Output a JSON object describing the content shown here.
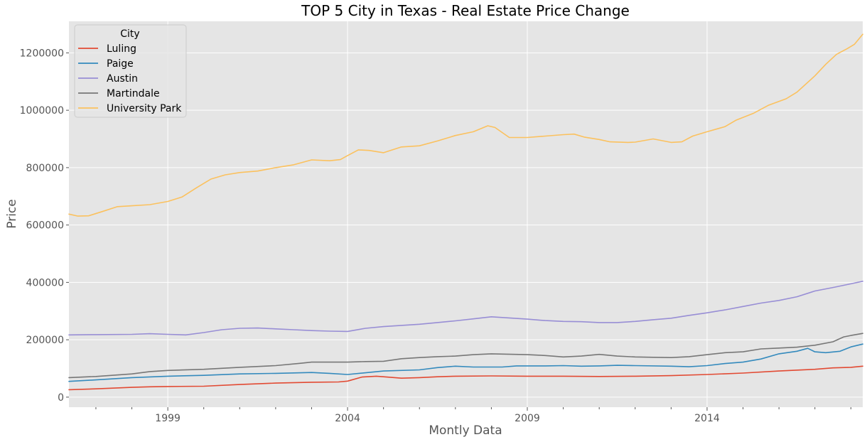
{
  "chart_data": {
    "type": "line",
    "title": "TOP 5 City in Texas - Real Estate Price Change",
    "xlabel": "Montly Data",
    "ylabel": "Price",
    "xlim": [
      1996.25,
      2018.33
    ],
    "ylim": [
      -35000,
      1310000
    ],
    "x_ticks": [
      1999,
      2004,
      2009,
      2014
    ],
    "x_tick_labels": [
      "1999",
      "2004",
      "2009",
      "2014"
    ],
    "y_ticks": [
      0,
      200000,
      400000,
      600000,
      800000,
      1000000,
      1200000
    ],
    "y_tick_labels": [
      "0",
      "200000",
      "400000",
      "600000",
      "800000",
      "1000000",
      "1200000"
    ],
    "grid": true,
    "legend": {
      "title": "City",
      "placement": "top-left"
    },
    "series": [
      {
        "name": "Luling",
        "color": "#E24A33",
        "points": [
          [
            1996.25,
            26000
          ],
          [
            1997,
            29000
          ],
          [
            1998,
            34000
          ],
          [
            1998.5,
            36000
          ],
          [
            1999,
            37000
          ],
          [
            2000,
            38000
          ],
          [
            2001,
            44000
          ],
          [
            2002,
            49000
          ],
          [
            2003,
            52000
          ],
          [
            2003.75,
            53000
          ],
          [
            2004,
            56000
          ],
          [
            2004.4,
            70000
          ],
          [
            2004.8,
            73000
          ],
          [
            2005,
            71000
          ],
          [
            2005.5,
            66000
          ],
          [
            2006,
            68000
          ],
          [
            2006.5,
            71000
          ],
          [
            2007,
            73000
          ],
          [
            2008,
            74000
          ],
          [
            2009,
            73000
          ],
          [
            2010,
            73000
          ],
          [
            2011,
            72000
          ],
          [
            2012,
            73000
          ],
          [
            2013,
            75000
          ],
          [
            2014,
            79000
          ],
          [
            2015,
            84000
          ],
          [
            2016,
            91000
          ],
          [
            2017,
            97000
          ],
          [
            2017.5,
            102000
          ],
          [
            2018,
            104000
          ],
          [
            2018.33,
            108000
          ]
        ]
      },
      {
        "name": "Paige",
        "color": "#348ABD",
        "points": [
          [
            1996.25,
            55000
          ],
          [
            1997,
            60000
          ],
          [
            1998,
            68000
          ],
          [
            1999,
            73000
          ],
          [
            2000,
            76000
          ],
          [
            2001,
            81000
          ],
          [
            2002,
            83000
          ],
          [
            2003,
            86000
          ],
          [
            2003.5,
            83000
          ],
          [
            2004,
            79000
          ],
          [
            2004.5,
            85000
          ],
          [
            2005,
            91000
          ],
          [
            2006,
            95000
          ],
          [
            2006.5,
            103000
          ],
          [
            2007,
            108000
          ],
          [
            2007.5,
            105000
          ],
          [
            2008.3,
            105000
          ],
          [
            2008.7,
            109000
          ],
          [
            2009.5,
            109000
          ],
          [
            2010,
            110000
          ],
          [
            2010.5,
            108000
          ],
          [
            2011,
            109000
          ],
          [
            2011.5,
            111000
          ],
          [
            2012,
            110000
          ],
          [
            2013,
            108000
          ],
          [
            2013.5,
            106000
          ],
          [
            2014,
            110000
          ],
          [
            2014.5,
            117000
          ],
          [
            2015,
            122000
          ],
          [
            2015.5,
            133000
          ],
          [
            2016,
            151000
          ],
          [
            2016.5,
            160000
          ],
          [
            2016.8,
            170000
          ],
          [
            2017,
            158000
          ],
          [
            2017.3,
            155000
          ],
          [
            2017.7,
            160000
          ],
          [
            2018,
            175000
          ],
          [
            2018.33,
            185000
          ]
        ]
      },
      {
        "name": "Austin",
        "color": "#988ED5",
        "points": [
          [
            1996.25,
            217000
          ],
          [
            1997,
            218000
          ],
          [
            1998,
            219000
          ],
          [
            1998.5,
            221000
          ],
          [
            1999,
            219000
          ],
          [
            1999.5,
            217000
          ],
          [
            2000,
            225000
          ],
          [
            2000.5,
            235000
          ],
          [
            2001,
            240000
          ],
          [
            2001.5,
            241000
          ],
          [
            2002,
            238000
          ],
          [
            2002.5,
            235000
          ],
          [
            2003,
            232000
          ],
          [
            2003.5,
            230000
          ],
          [
            2004,
            229000
          ],
          [
            2004.5,
            240000
          ],
          [
            2005,
            246000
          ],
          [
            2005.5,
            250000
          ],
          [
            2006,
            254000
          ],
          [
            2006.5,
            260000
          ],
          [
            2007,
            266000
          ],
          [
            2007.5,
            273000
          ],
          [
            2008,
            280000
          ],
          [
            2008.5,
            276000
          ],
          [
            2009,
            272000
          ],
          [
            2009.5,
            267000
          ],
          [
            2010,
            264000
          ],
          [
            2010.5,
            263000
          ],
          [
            2011,
            260000
          ],
          [
            2011.5,
            260000
          ],
          [
            2012,
            264000
          ],
          [
            2012.5,
            270000
          ],
          [
            2013,
            275000
          ],
          [
            2013.5,
            285000
          ],
          [
            2014,
            294000
          ],
          [
            2014.5,
            304000
          ],
          [
            2015,
            316000
          ],
          [
            2015.5,
            328000
          ],
          [
            2016,
            337000
          ],
          [
            2016.5,
            350000
          ],
          [
            2017,
            370000
          ],
          [
            2017.5,
            382000
          ],
          [
            2018,
            395000
          ],
          [
            2018.33,
            404000
          ]
        ]
      },
      {
        "name": "Martindale",
        "color": "#777777",
        "points": [
          [
            1996.25,
            68000
          ],
          [
            1997,
            72000
          ],
          [
            1998,
            81000
          ],
          [
            1998.5,
            89000
          ],
          [
            1999,
            93000
          ],
          [
            2000,
            97000
          ],
          [
            2001,
            104000
          ],
          [
            2002,
            110000
          ],
          [
            2002.7,
            118000
          ],
          [
            2003,
            122000
          ],
          [
            2004,
            122000
          ],
          [
            2004.5,
            124000
          ],
          [
            2005,
            125000
          ],
          [
            2005.5,
            134000
          ],
          [
            2006,
            138000
          ],
          [
            2006.5,
            141000
          ],
          [
            2007,
            143000
          ],
          [
            2007.5,
            148000
          ],
          [
            2008,
            151000
          ],
          [
            2009,
            148000
          ],
          [
            2009.5,
            145000
          ],
          [
            2010,
            140000
          ],
          [
            2010.5,
            143000
          ],
          [
            2011,
            149000
          ],
          [
            2011.5,
            143000
          ],
          [
            2012,
            140000
          ],
          [
            2012.5,
            139000
          ],
          [
            2013,
            138000
          ],
          [
            2013.5,
            141000
          ],
          [
            2014,
            148000
          ],
          [
            2014.5,
            155000
          ],
          [
            2015,
            158000
          ],
          [
            2015.5,
            168000
          ],
          [
            2016,
            171000
          ],
          [
            2016.5,
            174000
          ],
          [
            2017,
            181000
          ],
          [
            2017.5,
            193000
          ],
          [
            2017.8,
            210000
          ],
          [
            2018,
            215000
          ],
          [
            2018.33,
            222000
          ]
        ]
      },
      {
        "name": "University Park",
        "color": "#FBC15E",
        "points": [
          [
            1996.25,
            638000
          ],
          [
            1996.5,
            631000
          ],
          [
            1996.8,
            632000
          ],
          [
            1997.2,
            648000
          ],
          [
            1997.6,
            664000
          ],
          [
            1998,
            667000
          ],
          [
            1998.5,
            671000
          ],
          [
            1999,
            682000
          ],
          [
            1999.4,
            698000
          ],
          [
            1999.8,
            730000
          ],
          [
            2000.2,
            760000
          ],
          [
            2000.6,
            775000
          ],
          [
            2001,
            783000
          ],
          [
            2001.5,
            788000
          ],
          [
            2002,
            800000
          ],
          [
            2002.5,
            810000
          ],
          [
            2003,
            827000
          ],
          [
            2003.5,
            824000
          ],
          [
            2003.8,
            828000
          ],
          [
            2004,
            842000
          ],
          [
            2004.3,
            862000
          ],
          [
            2004.6,
            860000
          ],
          [
            2005,
            852000
          ],
          [
            2005.5,
            872000
          ],
          [
            2006,
            876000
          ],
          [
            2006.5,
            893000
          ],
          [
            2007,
            912000
          ],
          [
            2007.5,
            925000
          ],
          [
            2007.9,
            946000
          ],
          [
            2008.1,
            940000
          ],
          [
            2008.5,
            905000
          ],
          [
            2009,
            905000
          ],
          [
            2009.5,
            910000
          ],
          [
            2010,
            915000
          ],
          [
            2010.3,
            917000
          ],
          [
            2010.6,
            906000
          ],
          [
            2011,
            898000
          ],
          [
            2011.3,
            890000
          ],
          [
            2011.8,
            888000
          ],
          [
            2012,
            889000
          ],
          [
            2012.5,
            900000
          ],
          [
            2013,
            888000
          ],
          [
            2013.3,
            890000
          ],
          [
            2013.6,
            910000
          ],
          [
            2014,
            925000
          ],
          [
            2014.5,
            943000
          ],
          [
            2014.8,
            965000
          ],
          [
            2015.3,
            990000
          ],
          [
            2015.7,
            1017000
          ],
          [
            2016.2,
            1040000
          ],
          [
            2016.5,
            1063000
          ],
          [
            2017,
            1120000
          ],
          [
            2017.3,
            1160000
          ],
          [
            2017.6,
            1195000
          ],
          [
            2017.9,
            1215000
          ],
          [
            2018.1,
            1230000
          ],
          [
            2018.33,
            1265000
          ]
        ]
      }
    ]
  }
}
